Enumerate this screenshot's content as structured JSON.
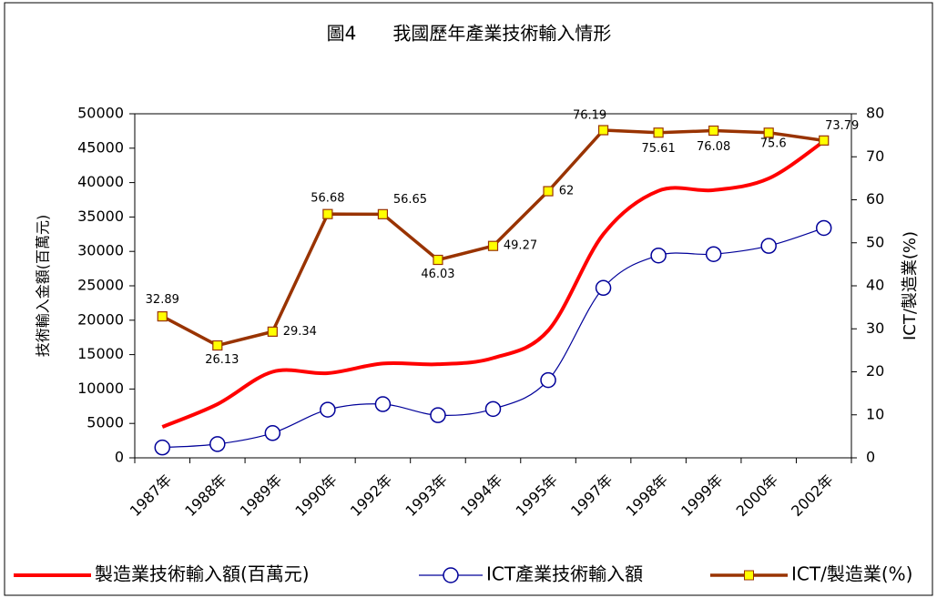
{
  "chart_data": {
    "type": "line",
    "title": "圖4　　我國歷年產業技術輸入情形",
    "y_label": "技術輸入金額(百萬元)",
    "y2_label": "ICT/製造業(%)",
    "categories": [
      "1987年",
      "1988年",
      "1989年",
      "1990年",
      "1992年",
      "1993年",
      "1994年",
      "1995年",
      "1997年",
      "1998年",
      "1999年",
      "2000年",
      "2002年"
    ],
    "series": [
      {
        "name": "製造業技術輸入額(百萬元)",
        "color": "#ff0000",
        "smooth": true,
        "values": [
          4500,
          7800,
          12500,
          12300,
          13700,
          13600,
          14500,
          18500,
          32500,
          38800,
          38900,
          40600,
          46000
        ]
      },
      {
        "name": "ICT產業技術輸入額",
        "color": "#000099",
        "smooth": true,
        "marker": "circle",
        "values": [
          1500,
          2000,
          3600,
          7000,
          7800,
          6200,
          7100,
          11300,
          24700,
          29400,
          29600,
          30800,
          33400
        ]
      },
      {
        "name": "ICT/製造業(%)",
        "color": "#993300",
        "marker": "square",
        "axis": "y2",
        "values": [
          32.89,
          26.13,
          29.34,
          56.68,
          56.65,
          46.03,
          49.27,
          62,
          76.19,
          75.61,
          76.08,
          75.6,
          73.79
        ]
      }
    ],
    "ylim": [
      0,
      50000
    ],
    "yticks": [
      0,
      5000,
      10000,
      15000,
      20000,
      25000,
      30000,
      35000,
      40000,
      45000,
      50000
    ],
    "y2lim": [
      0,
      80
    ],
    "y2ticks": [
      0,
      10,
      20,
      30,
      40,
      50,
      60,
      70,
      80
    ],
    "legend": "bottom"
  }
}
